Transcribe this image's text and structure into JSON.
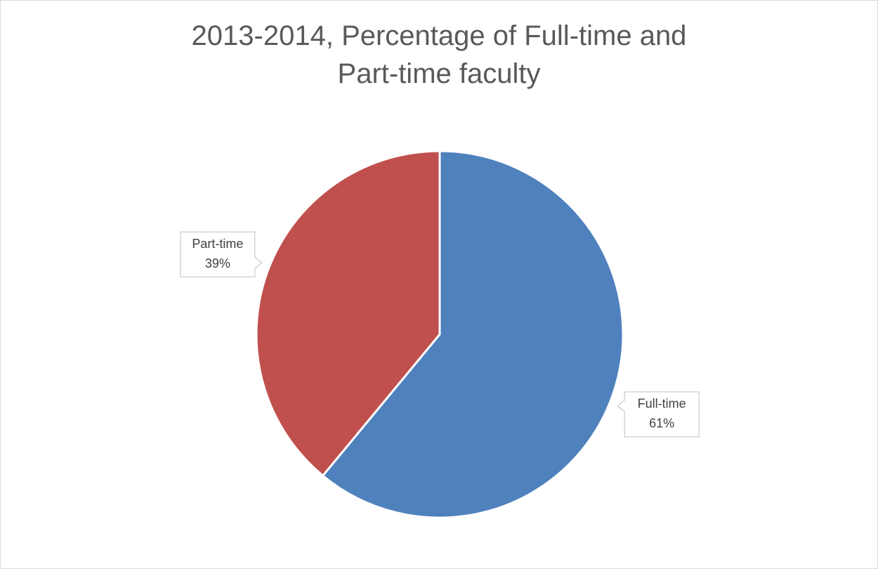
{
  "chart_data": {
    "type": "pie",
    "title": "2013-2014, Percentage of Full-time and Part-time faculty",
    "categories": [
      "Full-time",
      "Part-time"
    ],
    "values": [
      61,
      39
    ],
    "value_labels": [
      "61%",
      "39%"
    ],
    "colors": [
      "#4f81bd",
      "#c0504d"
    ]
  }
}
